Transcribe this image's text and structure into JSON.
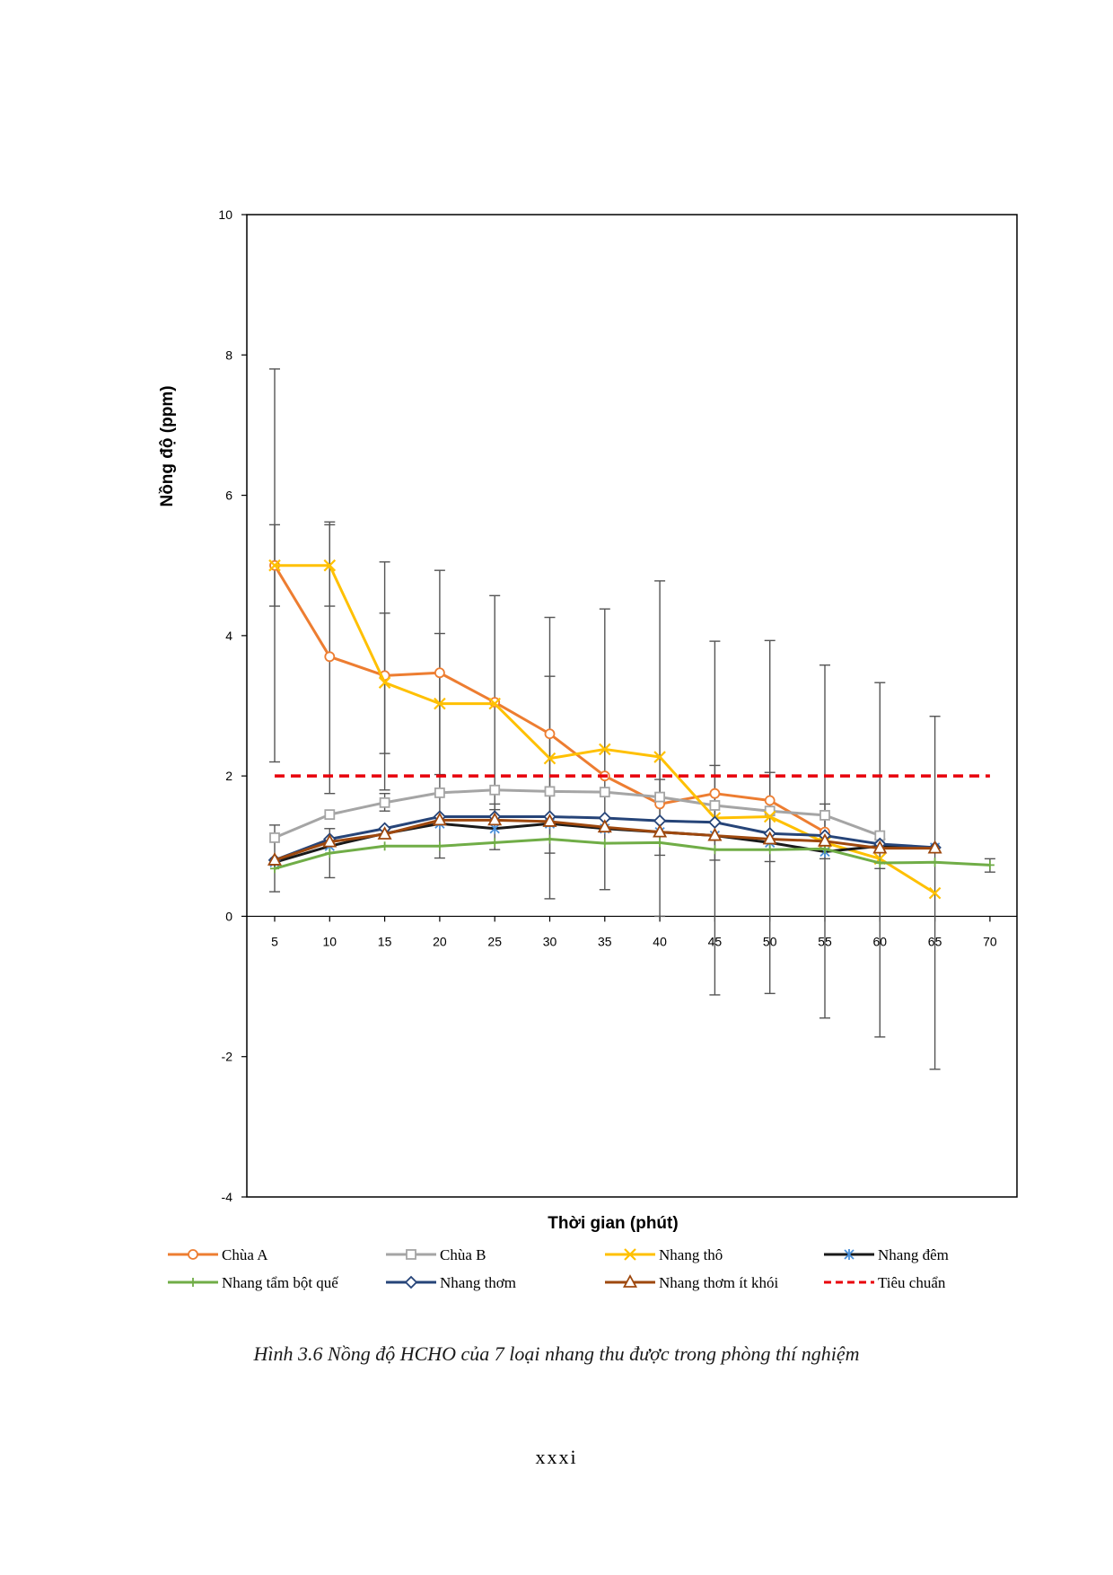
{
  "chart_data": {
    "type": "line",
    "title": "",
    "xlabel": "Thời gian (phút)",
    "ylabel": "Nồng độ (ppm)",
    "x": [
      5,
      10,
      15,
      20,
      25,
      30,
      35,
      40,
      45,
      50,
      55,
      60,
      65,
      70
    ],
    "ylim": [
      -4,
      10
    ],
    "yticks": [
      -4,
      -2,
      0,
      2,
      4,
      6,
      8,
      10
    ],
    "grid": false,
    "legend_position": "bottom",
    "series": [
      {
        "name": "Chùa A",
        "color": "#ED7D31",
        "marker": "circle",
        "x": [
          5,
          10,
          15,
          20,
          25,
          30,
          35,
          40,
          45,
          50,
          55
        ],
        "values": [
          5.0,
          3.7,
          3.43,
          3.47,
          3.05,
          2.6,
          2.0,
          1.6,
          1.75,
          1.65,
          1.2
        ]
      },
      {
        "name": "Chùa B",
        "color": "#A5A5A5",
        "marker": "square",
        "x": [
          5,
          10,
          15,
          20,
          25,
          30,
          35,
          40,
          45,
          50,
          55,
          60
        ],
        "values": [
          1.12,
          1.45,
          1.62,
          1.76,
          1.8,
          1.78,
          1.77,
          1.7,
          1.58,
          1.5,
          1.44,
          1.15
        ]
      },
      {
        "name": "Nhang thô",
        "color": "#FFC000",
        "marker": "x",
        "x": [
          5,
          10,
          15,
          20,
          25,
          30,
          35,
          40,
          45,
          50,
          55,
          60,
          65
        ],
        "values": [
          5.0,
          5.0,
          3.33,
          3.03,
          3.03,
          2.25,
          2.38,
          2.27,
          1.4,
          1.42,
          1.05,
          0.82,
          0.33
        ]
      },
      {
        "name": "Nhang đêm",
        "color": "#1a1a1a",
        "marker": "asterisk",
        "x": [
          5,
          10,
          15,
          20,
          25,
          30,
          35,
          40,
          45,
          50,
          55,
          60,
          65
        ],
        "values": [
          0.77,
          1.0,
          1.18,
          1.32,
          1.25,
          1.32,
          1.25,
          1.2,
          1.15,
          1.05,
          0.92,
          1.0,
          0.98
        ]
      },
      {
        "name": "Nhang tẩm bột quế",
        "color": "#70AD47",
        "marker": "plus",
        "x": [
          5,
          10,
          15,
          20,
          25,
          30,
          35,
          40,
          45,
          50,
          55,
          60,
          65,
          70
        ],
        "values": [
          0.68,
          0.9,
          1.0,
          1.0,
          1.05,
          1.1,
          1.04,
          1.05,
          0.95,
          0.95,
          0.96,
          0.76,
          0.77,
          0.73
        ]
      },
      {
        "name": "Nhang thơm",
        "color": "#264478",
        "marker": "diamond",
        "x": [
          5,
          10,
          15,
          20,
          25,
          30,
          35,
          40,
          45,
          50,
          55,
          60,
          65
        ],
        "values": [
          0.8,
          1.1,
          1.25,
          1.42,
          1.42,
          1.42,
          1.4,
          1.36,
          1.34,
          1.18,
          1.15,
          1.03,
          0.98
        ]
      },
      {
        "name": "Nhang thơm ít khói",
        "color": "#9E480E",
        "marker": "triangle",
        "x": [
          5,
          10,
          15,
          20,
          25,
          30,
          35,
          40,
          45,
          50,
          55,
          60,
          65
        ],
        "values": [
          0.8,
          1.06,
          1.17,
          1.37,
          1.37,
          1.35,
          1.27,
          1.2,
          1.15,
          1.1,
          1.07,
          0.97,
          0.97
        ]
      },
      {
        "name": "Tiêu chuẩn",
        "color": "#E8000B",
        "marker": "none",
        "dashed": true,
        "x": [
          5,
          10,
          15,
          20,
          25,
          30,
          35,
          40,
          45,
          50,
          55,
          60,
          65,
          70
        ],
        "values": [
          2,
          2,
          2,
          2,
          2,
          2,
          2,
          2,
          2,
          2,
          2,
          2,
          2,
          2
        ]
      }
    ],
    "error_bars": [
      {
        "x": 5,
        "low": 0.35,
        "high": 1.3
      },
      {
        "x": 5,
        "low": 2.2,
        "high": 7.8
      },
      {
        "x": 5,
        "low": 4.42,
        "high": 5.58
      },
      {
        "x": 10,
        "low": 0.55,
        "high": 1.25
      },
      {
        "x": 10,
        "low": 1.75,
        "high": 5.62
      },
      {
        "x": 10,
        "low": 4.42,
        "high": 5.58
      },
      {
        "x": 15,
        "low": 1.5,
        "high": 1.75
      },
      {
        "x": 15,
        "low": 1.8,
        "high": 5.05
      },
      {
        "x": 15,
        "low": 2.32,
        "high": 4.32
      },
      {
        "x": 20,
        "low": 0.83,
        "high": 4.93
      },
      {
        "x": 20,
        "low": 2.02,
        "high": 4.03
      },
      {
        "x": 25,
        "low": 0.95,
        "high": 1.6
      },
      {
        "x": 25,
        "low": 1.52,
        "high": 4.57
      },
      {
        "x": 30,
        "low": 0.25,
        "high": 4.26
      },
      {
        "x": 30,
        "low": 0.9,
        "high": 3.42
      },
      {
        "x": 35,
        "low": 0.38,
        "high": 4.38
      },
      {
        "x": 40,
        "low": 0.0,
        "high": 4.78
      },
      {
        "x": 40,
        "low": 0.87,
        "high": 1.95
      },
      {
        "x": 45,
        "low": -1.12,
        "high": 3.92
      },
      {
        "x": 45,
        "low": 0.8,
        "high": 2.15
      },
      {
        "x": 50,
        "low": -1.1,
        "high": 3.93
      },
      {
        "x": 50,
        "low": 0.78,
        "high": 2.05
      },
      {
        "x": 55,
        "low": -1.45,
        "high": 3.58
      },
      {
        "x": 55,
        "low": 0.82,
        "high": 1.6
      },
      {
        "x": 60,
        "low": -1.72,
        "high": 3.33
      },
      {
        "x": 60,
        "low": 0.68,
        "high": 1.1
      },
      {
        "x": 65,
        "low": -2.18,
        "high": 2.85
      },
      {
        "x": 70,
        "low": 0.63,
        "high": 0.82
      }
    ]
  },
  "caption": "Hình 3.6 Nồng độ HCHO của 7 loại nhang thu được trong phòng thí nghiệm",
  "page_number": "xxxi"
}
